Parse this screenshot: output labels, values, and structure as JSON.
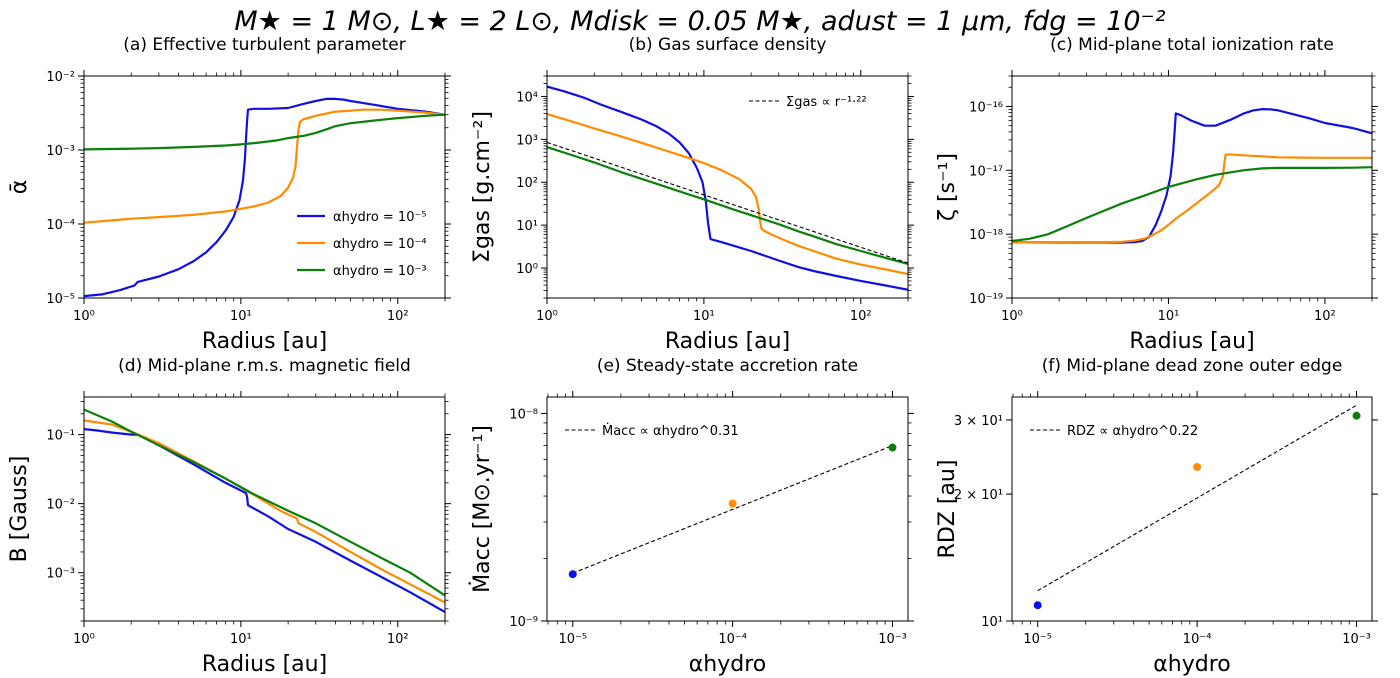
{
  "figure": {
    "suptitle": "M★ = 1 M⊙, L★ = 2 L⊙, Mdisk = 0.05 M★, adust = 1 μm, fdg = 10⁻²"
  },
  "colors": {
    "blue": "#1010e0",
    "orange": "#ff8c00",
    "green": "#0a7f0a",
    "black": "#000000"
  },
  "chart_data": [
    {
      "id": "a",
      "type": "line",
      "title": "(a) Effective turbulent parameter",
      "xlabel": "Radius [au]",
      "ylabel": "ᾱ",
      "xscale": "log",
      "yscale": "log",
      "xlim": [
        1,
        200
      ],
      "ylim": [
        1e-05,
        0.01
      ],
      "xticks": [
        {
          "v": 1,
          "t": "10⁰"
        },
        {
          "v": 10,
          "t": "10¹"
        },
        {
          "v": 100,
          "t": "10²"
        }
      ],
      "yticks": [
        {
          "v": 1e-05,
          "t": "10⁻⁵"
        },
        {
          "v": 0.0001,
          "t": "10⁻⁴"
        },
        {
          "v": 0.001,
          "t": "10⁻³"
        },
        {
          "v": 0.01,
          "t": "10⁻²"
        }
      ],
      "legend": {
        "position": "lower-right",
        "entries": [
          "αhydro = 10⁻⁵",
          "αhydro = 10⁻⁴",
          "αhydro = 10⁻³"
        ]
      },
      "series": [
        {
          "name": "αhydro = 10⁻⁵",
          "color": "blue",
          "x": [
            1,
            1.3,
            1.7,
            2.1,
            2.2,
            3,
            4,
            5,
            6,
            7,
            8,
            9,
            9.8,
            10.3,
            10.6,
            10.8,
            10.95,
            11.1,
            12,
            15,
            20,
            25,
            30,
            35,
            40,
            45,
            50,
            70,
            100,
            150,
            200
          ],
          "y": [
            1.06e-05,
            1.12e-05,
            1.28e-05,
            1.48e-05,
            1.65e-05,
            1.95e-05,
            2.45e-05,
            3.15e-05,
            4.15e-05,
            5.7e-05,
            8.2e-05,
            0.000125,
            0.00021,
            0.00038,
            0.00075,
            0.0015,
            0.0025,
            0.0035,
            0.0036,
            0.0036,
            0.0037,
            0.0042,
            0.0046,
            0.0049,
            0.0049,
            0.0048,
            0.0046,
            0.0041,
            0.0036,
            0.0033,
            0.003
          ]
        },
        {
          "name": "αhydro = 10⁻⁴",
          "color": "orange",
          "x": [
            1,
            1.5,
            2,
            3,
            5,
            8,
            12,
            15,
            18,
            20,
            21.5,
            22.3,
            22.8,
            23.3,
            23.8,
            25,
            30,
            40,
            50,
            60,
            80,
            100,
            150,
            200
          ],
          "y": [
            0.000104,
            0.000112,
            0.000118,
            0.000124,
            0.000133,
            0.000148,
            0.000172,
            0.000195,
            0.00024,
            0.00031,
            0.00042,
            0.0006,
            0.0011,
            0.0019,
            0.0024,
            0.0026,
            0.0029,
            0.0033,
            0.0034,
            0.0035,
            0.0035,
            0.0034,
            0.0032,
            0.003
          ]
        },
        {
          "name": "αhydro = 10⁻³",
          "color": "green",
          "x": [
            1,
            2,
            3,
            5,
            8,
            10,
            13,
            17,
            20,
            25,
            30,
            35,
            40,
            50,
            70,
            100,
            150,
            200
          ],
          "y": [
            0.00102,
            0.00104,
            0.00106,
            0.0011,
            0.00115,
            0.00119,
            0.00126,
            0.00135,
            0.00145,
            0.00155,
            0.0017,
            0.0019,
            0.0021,
            0.0023,
            0.0025,
            0.0027,
            0.0029,
            0.003
          ]
        }
      ]
    },
    {
      "id": "b",
      "type": "line",
      "title": "(b) Gas surface density",
      "xlabel": "Radius [au]",
      "ylabel": "Σgas [g.cm⁻²]",
      "xscale": "log",
      "yscale": "log",
      "xlim": [
        1,
        200
      ],
      "ylim": [
        0.2,
        30000
      ],
      "xticks": [
        {
          "v": 1,
          "t": "10⁰"
        },
        {
          "v": 10,
          "t": "10¹"
        },
        {
          "v": 100,
          "t": "10²"
        }
      ],
      "yticks": [
        {
          "v": 1,
          "t": "10⁰"
        },
        {
          "v": 10,
          "t": "10¹"
        },
        {
          "v": 100,
          "t": "10²"
        },
        {
          "v": 1000,
          "t": "10³"
        },
        {
          "v": 10000,
          "t": "10⁴"
        }
      ],
      "legend": {
        "position": "top-right",
        "entries": [
          "Σgas ∝ r⁻¹·²²"
        ]
      },
      "series": [
        {
          "name": "αhydro = 10⁻⁵",
          "color": "blue",
          "x": [
            1,
            1.3,
            1.7,
            2.2,
            3,
            4,
            5,
            6,
            7,
            8,
            9,
            9.8,
            10.3,
            10.6,
            10.9,
            11,
            11.3,
            13,
            16,
            20,
            30,
            40,
            50,
            70,
            100,
            150,
            200
          ],
          "y": [
            17000,
            13000,
            9500,
            6500,
            4300,
            2900,
            2000,
            1350,
            850,
            480,
            220,
            100,
            35,
            12,
            6,
            4.8,
            4.6,
            4,
            3.2,
            2.5,
            1.5,
            1.05,
            0.85,
            0.65,
            0.5,
            0.38,
            0.31
          ]
        },
        {
          "name": "αhydro = 10⁻⁴",
          "color": "orange",
          "x": [
            1,
            1.5,
            2,
            3,
            5,
            8,
            10,
            13,
            17,
            20,
            21.5,
            22.3,
            22.8,
            23.2,
            24,
            27,
            32,
            40,
            50,
            70,
            100,
            150,
            200
          ],
          "y": [
            3900,
            2500,
            1800,
            1150,
            640,
            370,
            280,
            190,
            115,
            70,
            45,
            25,
            13,
            8.5,
            7.5,
            6,
            4.6,
            3.3,
            2.5,
            1.65,
            1.2,
            0.9,
            0.72
          ]
        },
        {
          "name": "αhydro = 10⁻³",
          "color": "green",
          "x": [
            1,
            1.5,
            2,
            3,
            5,
            8,
            10,
            15,
            20,
            30,
            40,
            50,
            70,
            100,
            150,
            200
          ],
          "y": [
            660,
            410,
            290,
            170,
            92,
            52,
            40,
            24,
            17,
            10.5,
            7.2,
            5.5,
            3.6,
            2.5,
            1.65,
            1.25
          ]
        },
        {
          "name": "Σgas ∝ r⁻¹·²²",
          "color": "black",
          "dashed": true,
          "x": [
            1,
            200
          ],
          "y": [
            850,
            1.3
          ]
        }
      ]
    },
    {
      "id": "c",
      "type": "line",
      "title": "(c) Mid-plane total ionization rate",
      "xlabel": "Radius [au]",
      "ylabel": "ζ [s⁻¹]",
      "xscale": "log",
      "yscale": "log",
      "xlim": [
        1,
        200
      ],
      "ylim": [
        1e-19,
        3e-16
      ],
      "xticks": [
        {
          "v": 1,
          "t": "10⁰"
        },
        {
          "v": 10,
          "t": "10¹"
        },
        {
          "v": 100,
          "t": "10²"
        }
      ],
      "yticks": [
        {
          "v": 1e-19,
          "t": "10⁻¹⁹"
        },
        {
          "v": 1e-18,
          "t": "10⁻¹⁸"
        },
        {
          "v": 1e-17,
          "t": "10⁻¹⁷"
        },
        {
          "v": 1e-16,
          "t": "10⁻¹⁶"
        }
      ],
      "series": [
        {
          "name": "αhydro = 10⁻⁵",
          "color": "blue",
          "x": [
            1,
            2,
            3,
            4,
            5,
            6,
            6.8,
            7.5,
            8.3,
            9,
            9.7,
            10.3,
            10.7,
            10.95,
            11.15,
            12,
            14,
            17,
            20,
            25,
            30,
            35,
            40,
            45,
            50,
            60,
            80,
            100,
            150,
            200
          ],
          "y": [
            7.5e-19,
            7.4e-19,
            7.4e-19,
            7.4e-19,
            7.4e-19,
            7.5e-19,
            7.8e-19,
            9e-19,
            1.4e-18,
            2.3e-18,
            4e-18,
            8e-18,
            1.8e-17,
            4e-17,
            7.8e-17,
            7.3e-17,
            6e-17,
            5e-17,
            5e-17,
            6.2e-17,
            7.7e-17,
            8.7e-17,
            9.1e-17,
            9e-17,
            8.7e-17,
            7.8e-17,
            6.5e-17,
            5.5e-17,
            4.6e-17,
            3.8e-17
          ]
        },
        {
          "name": "αhydro = 10⁻⁴",
          "color": "orange",
          "x": [
            1,
            2,
            3,
            4,
            5,
            6,
            7,
            8,
            9,
            10,
            11,
            13,
            15,
            17,
            19,
            21,
            22.3,
            22.8,
            23.2,
            24,
            30,
            40,
            50,
            70,
            100,
            150,
            200
          ],
          "y": [
            7.5e-19,
            7.5e-19,
            7.5e-19,
            7.5e-19,
            7.6e-19,
            7.9e-19,
            8.5e-19,
            9.8e-19,
            1.15e-18,
            1.4e-18,
            1.7e-18,
            2.3e-18,
            3e-18,
            3.8e-18,
            4.7e-18,
            5.8e-18,
            8e-18,
            1.35e-17,
            1.75e-17,
            1.78e-17,
            1.72e-17,
            1.65e-17,
            1.6e-17,
            1.58e-17,
            1.57e-17,
            1.57e-17,
            1.57e-17
          ]
        },
        {
          "name": "αhydro = 10⁻³",
          "color": "green",
          "x": [
            1,
            1.3,
            1.7,
            2.2,
            3,
            4,
            5,
            7,
            10,
            15,
            20,
            30,
            40,
            50,
            70,
            100,
            150,
            200
          ],
          "y": [
            7.8e-19,
            8.5e-19,
            1e-18,
            1.3e-18,
            1.8e-18,
            2.4e-18,
            3e-18,
            4e-18,
            5.5e-18,
            7.2e-18,
            8.5e-18,
            1e-17,
            1.07e-17,
            1.09e-17,
            1.09e-17,
            1.09e-17,
            1.1e-17,
            1.12e-17
          ]
        }
      ]
    },
    {
      "id": "d",
      "type": "line",
      "title": "(d) Mid-plane r.m.s. magnetic field",
      "xlabel": "Radius [au]",
      "ylabel": "B [Gauss]",
      "xscale": "log",
      "yscale": "log",
      "xlim": [
        1,
        200
      ],
      "ylim": [
        0.0002,
        0.35
      ],
      "xticks": [
        {
          "v": 1,
          "t": "10⁰"
        },
        {
          "v": 10,
          "t": "10¹"
        },
        {
          "v": 100,
          "t": "10²"
        }
      ],
      "yticks": [
        {
          "v": 0.001,
          "t": "10⁻³"
        },
        {
          "v": 0.01,
          "t": "10⁻²"
        },
        {
          "v": 0.1,
          "t": "10⁻¹"
        }
      ],
      "series": [
        {
          "name": "αhydro = 10⁻⁵",
          "color": "blue",
          "x": [
            1,
            1.2,
            1.5,
            2,
            2.2,
            3,
            5,
            8,
            10.8,
            10.95,
            11.1,
            15,
            20,
            30,
            50,
            80,
            120,
            200
          ],
          "y": [
            0.12,
            0.115,
            0.107,
            0.1,
            0.1,
            0.07,
            0.037,
            0.02,
            0.0142,
            0.0125,
            0.0095,
            0.0065,
            0.0043,
            0.0028,
            0.0015,
            0.00085,
            0.00052,
            0.00027
          ]
        },
        {
          "name": "αhydro = 10⁻⁴",
          "color": "orange",
          "x": [
            1,
            1.5,
            2,
            3,
            5,
            8,
            12,
            18,
            22.8,
            23.3,
            30,
            50,
            80,
            120,
            200
          ],
          "y": [
            0.16,
            0.14,
            0.11,
            0.075,
            0.041,
            0.023,
            0.0135,
            0.0078,
            0.0061,
            0.0052,
            0.0039,
            0.002,
            0.0011,
            0.00068,
            0.00037
          ]
        },
        {
          "name": "αhydro = 10⁻³",
          "color": "green",
          "x": [
            1,
            1.5,
            2,
            3,
            5,
            8,
            12,
            20,
            30,
            50,
            80,
            120,
            200
          ],
          "y": [
            0.23,
            0.155,
            0.11,
            0.07,
            0.04,
            0.023,
            0.0138,
            0.0079,
            0.0052,
            0.0028,
            0.0016,
            0.001,
            0.00047
          ]
        }
      ]
    },
    {
      "id": "e",
      "type": "scatter",
      "title": "(e) Steady-state accretion rate",
      "xlabel": "αhydro",
      "ylabel": "Ṁacc [M⊙.yr⁻¹]",
      "xscale": "log",
      "yscale": "log",
      "xlim": [
        6.9e-06,
        0.00125
      ],
      "ylim": [
        1e-09,
        1.2e-08
      ],
      "xticks": [
        {
          "v": 1e-05,
          "t": "10⁻⁵"
        },
        {
          "v": 0.0001,
          "t": "10⁻⁴"
        },
        {
          "v": 0.001,
          "t": "10⁻³"
        }
      ],
      "yticks": [
        {
          "v": 1e-09,
          "t": "10⁻⁹"
        },
        {
          "v": 1e-08,
          "t": "10⁻⁸"
        }
      ],
      "legend": {
        "position": "top-left",
        "entries": [
          "Ṁacc ∝ αhydro^0.31"
        ]
      },
      "points": [
        {
          "x": 1e-05,
          "y": 1.68e-09,
          "color": "blue"
        },
        {
          "x": 0.0001,
          "y": 3.68e-09,
          "color": "orange"
        },
        {
          "x": 0.001,
          "y": 6.85e-09,
          "color": "green"
        }
      ],
      "fit": {
        "name": "Ṁacc ∝ αhydro^0.31",
        "x": [
          1e-05,
          0.001
        ],
        "y": [
          1.7e-09,
          7e-09
        ],
        "dashed": true
      }
    },
    {
      "id": "f",
      "type": "scatter",
      "title": "(f) Mid-plane dead zone outer edge",
      "xlabel": "αhydro",
      "ylabel": "RDZ [au]",
      "xscale": "log",
      "yscale": "log",
      "xlim": [
        6.9e-06,
        0.00125
      ],
      "ylim": [
        10,
        34
      ],
      "xticks": [
        {
          "v": 1e-05,
          "t": "10⁻⁵"
        },
        {
          "v": 0.0001,
          "t": "10⁻⁴"
        },
        {
          "v": 0.001,
          "t": "10⁻³"
        }
      ],
      "yticks": [
        {
          "v": 10,
          "t": "10¹"
        },
        {
          "v": 20,
          "t": "2 × 10¹"
        },
        {
          "v": 30,
          "t": "3 × 10¹"
        }
      ],
      "legend": {
        "position": "top-left",
        "entries": [
          "RDZ ∝ αhydro^0.22"
        ]
      },
      "points": [
        {
          "x": 1e-05,
          "y": 10.9,
          "color": "blue"
        },
        {
          "x": 0.0001,
          "y": 23.2,
          "color": "orange"
        },
        {
          "x": 0.001,
          "y": 30.7,
          "color": "green"
        }
      ],
      "fit": {
        "name": "RDZ ∝ αhydro^0.22",
        "x": [
          1e-05,
          0.001
        ],
        "y": [
          11.8,
          32.5
        ],
        "dashed": true
      }
    }
  ]
}
